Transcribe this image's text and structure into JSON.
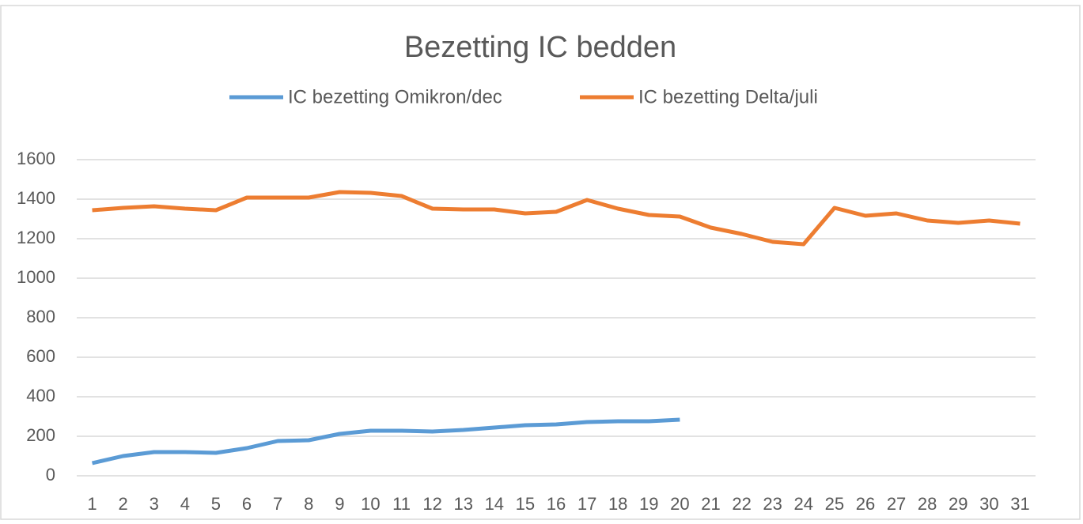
{
  "chart_data": {
    "type": "line",
    "title": "Bezetting IC bedden",
    "categories": [
      "1",
      "2",
      "3",
      "4",
      "5",
      "6",
      "7",
      "8",
      "9",
      "10",
      "11",
      "12",
      "13",
      "14",
      "15",
      "16",
      "17",
      "18",
      "19",
      "20",
      "21",
      "22",
      "23",
      "24",
      "25",
      "26",
      "27",
      "28",
      "29",
      "30",
      "31"
    ],
    "series": [
      {
        "name": "IC bezetting Omikron/dec",
        "color": "#5b9bd5",
        "values": [
          64,
          100,
          120,
          120,
          116,
          140,
          176,
          180,
          212,
          228,
          228,
          224,
          232,
          244,
          256,
          260,
          272,
          276,
          276,
          284,
          null,
          null,
          null,
          null,
          null,
          null,
          null,
          null,
          null,
          null,
          null
        ]
      },
      {
        "name": "IC bezetting Delta/juli",
        "color": "#ed7d31",
        "values": [
          1344,
          1356,
          1364,
          1352,
          1344,
          1408,
          1408,
          1408,
          1436,
          1432,
          1416,
          1352,
          1348,
          1348,
          1328,
          1336,
          1396,
          1352,
          1320,
          1312,
          1256,
          1224,
          1184,
          1172,
          1356,
          1316,
          1328,
          1292,
          1280,
          1292,
          1276
        ]
      }
    ],
    "ylim": [
      0,
      1600
    ],
    "yticks": [
      0,
      200,
      400,
      600,
      800,
      1000,
      1200,
      1400,
      1600
    ],
    "grid": true,
    "legend": "top"
  }
}
